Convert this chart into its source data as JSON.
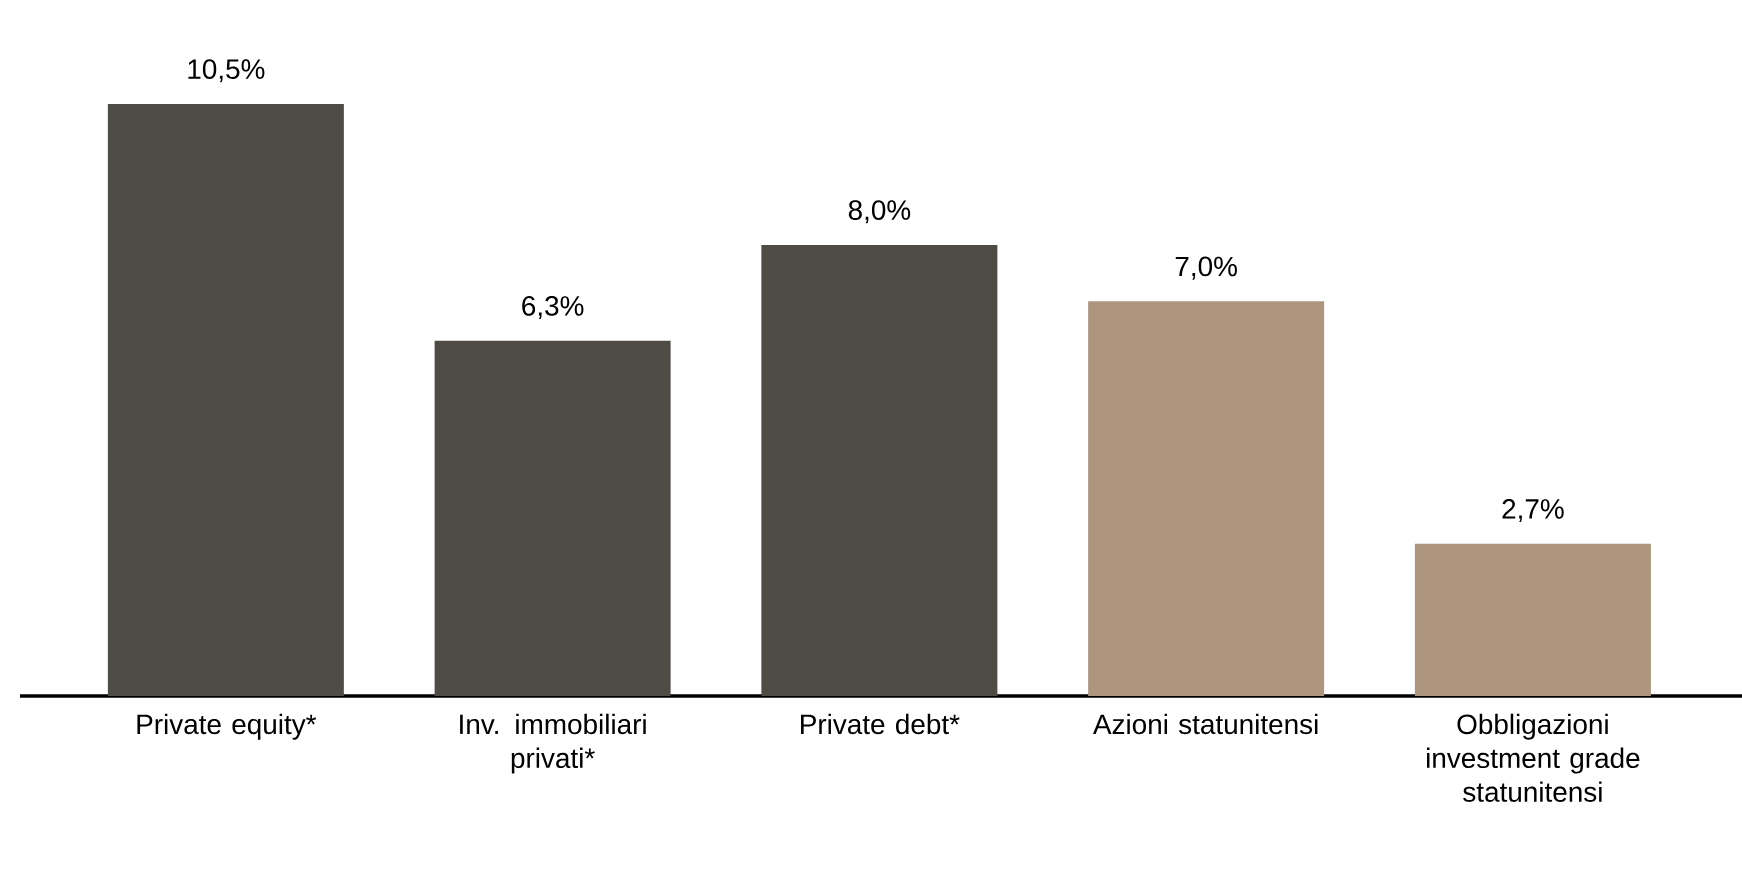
{
  "chart_data": {
    "type": "bar",
    "categories": [
      "Private equity*",
      "Inv. immobiliari privati*",
      "Private debt*",
      "Azioni statunitensi",
      "Obbligazioni investment grade statunitensi"
    ],
    "values": [
      10.5,
      6.3,
      8.0,
      7.0,
      2.7
    ],
    "colors": [
      "#4f4c45",
      "#4f4c45",
      "#4f4c45",
      "#ad967d",
      "#ad967d"
    ],
    "value_labels": [
      "10,5%",
      "6,3%",
      "8,0%",
      "7,0%",
      "2,7%"
    ],
    "tick_labels": "x"
  }
}
